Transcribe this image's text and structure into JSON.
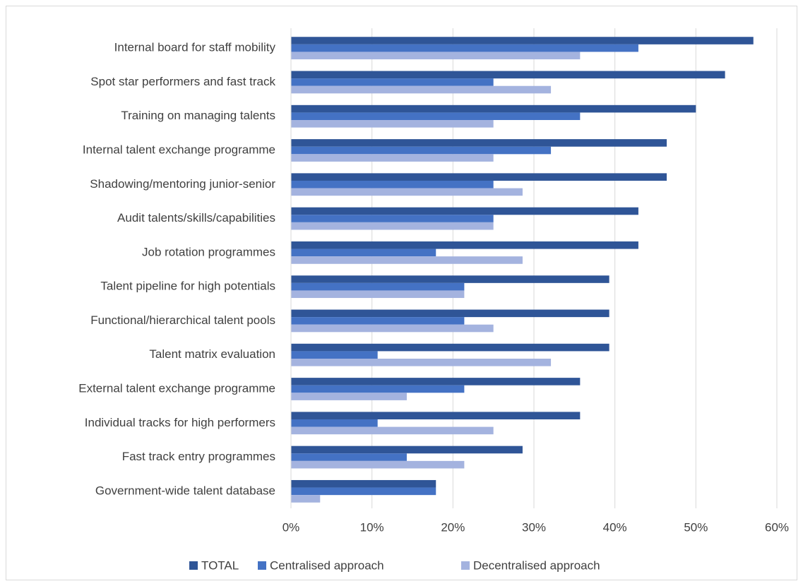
{
  "chart_data": {
    "type": "bar",
    "orientation": "horizontal",
    "categories": [
      "Internal board for staff mobility",
      "Spot star performers and fast track",
      "Training on managing talents",
      "Internal talent exchange programme",
      "Shadowing/mentoring junior-senior",
      "Audit talents/skills/capabilities",
      "Job rotation programmes",
      "Talent pipeline for high potentials",
      "Functional/hierarchical talent pools",
      "Talent matrix evaluation",
      "External talent exchange programme",
      "Individual tracks for high performers",
      "Fast track entry programmes",
      "Government-wide talent database"
    ],
    "series": [
      {
        "name": "TOTAL",
        "color": "#2f5597",
        "values": [
          57.1,
          53.6,
          50,
          46.4,
          46.4,
          42.9,
          42.9,
          39.3,
          39.3,
          39.3,
          35.7,
          35.7,
          28.6,
          17.9
        ]
      },
      {
        "name": "Centralised approach",
        "color": "#4472c4",
        "values": [
          42.9,
          25,
          35.7,
          32.1,
          25,
          25,
          17.9,
          21.4,
          21.4,
          10.7,
          21.4,
          10.7,
          14.3,
          17.9
        ]
      },
      {
        "name": "Decentralised approach",
        "color": "#a4b3df",
        "values": [
          35.7,
          32.1,
          25,
          25,
          28.6,
          25,
          28.6,
          21.4,
          25,
          32.1,
          14.3,
          25,
          21.4,
          3.6
        ]
      }
    ],
    "xlim": [
      0,
      60
    ],
    "xticks": [
      {
        "value": 0,
        "label": "0%"
      },
      {
        "value": 10,
        "label": "10%"
      },
      {
        "value": 20,
        "label": "20%"
      },
      {
        "value": 30,
        "label": "30%"
      },
      {
        "value": 40,
        "label": "40%"
      },
      {
        "value": 50,
        "label": "50%"
      },
      {
        "value": 60,
        "label": "60%"
      }
    ],
    "grid": true,
    "legend": "bottom"
  }
}
